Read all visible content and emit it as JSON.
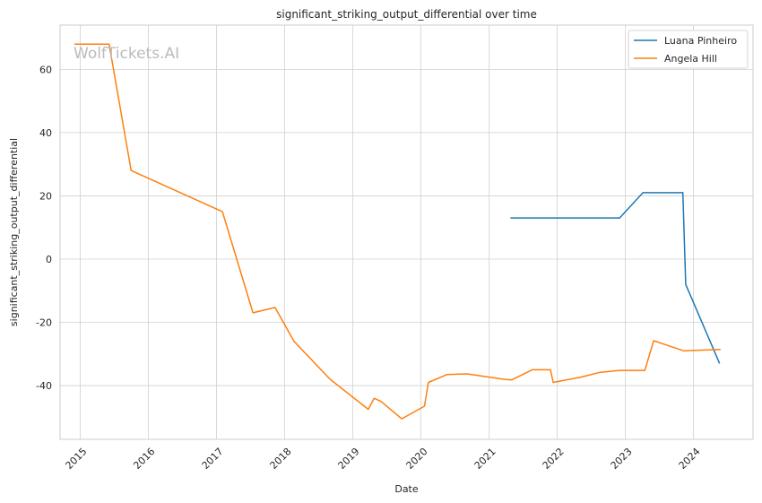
{
  "watermark": "WolfTickets.AI",
  "chart_data": {
    "type": "line",
    "title": "significant_striking_output_differential over time",
    "xlabel": "Date",
    "ylabel": "significant_striking_output_differential",
    "xlim": [
      "2014-09-15",
      "2024-11-15"
    ],
    "ylim": [
      -57,
      74
    ],
    "x_ticks": [
      "2015",
      "2016",
      "2017",
      "2018",
      "2019",
      "2020",
      "2021",
      "2022",
      "2023",
      "2024"
    ],
    "y_ticks": [
      -40,
      -20,
      0,
      20,
      40,
      60
    ],
    "grid": true,
    "legend_position": "top-right",
    "series": [
      {
        "name": "Luana Pinheiro",
        "color": "#1f77b4",
        "points": [
          [
            "2021-04-25",
            13
          ],
          [
            "2022-12-01",
            13
          ],
          [
            "2023-04-05",
            21
          ],
          [
            "2023-11-05",
            21
          ],
          [
            "2023-11-20",
            -8
          ],
          [
            "2024-05-20",
            -33
          ]
        ]
      },
      {
        "name": "Angela Hill",
        "color": "#ff7f0e",
        "points": [
          [
            "2014-12-01",
            68
          ],
          [
            "2015-06-05",
            68
          ],
          [
            "2015-10-01",
            28
          ],
          [
            "2017-02-01",
            15
          ],
          [
            "2017-07-15",
            -17
          ],
          [
            "2017-11-10",
            -15.3
          ],
          [
            "2018-02-20",
            -26
          ],
          [
            "2018-09-01",
            -38
          ],
          [
            "2019-03-25",
            -47.5
          ],
          [
            "2019-04-25",
            -44
          ],
          [
            "2019-06-01",
            -45
          ],
          [
            "2019-09-20",
            -50.5
          ],
          [
            "2020-01-20",
            -46.5
          ],
          [
            "2020-02-10",
            -39
          ],
          [
            "2020-05-20",
            -36.5
          ],
          [
            "2020-09-05",
            -36.3
          ],
          [
            "2021-03-20",
            -38
          ],
          [
            "2021-05-01",
            -38.2
          ],
          [
            "2021-08-20",
            -35
          ],
          [
            "2021-11-25",
            -35
          ],
          [
            "2021-12-10",
            -39
          ],
          [
            "2022-05-10",
            -37.3
          ],
          [
            "2022-08-20",
            -35.8
          ],
          [
            "2022-12-01",
            -35.2
          ],
          [
            "2023-04-15",
            -35.2
          ],
          [
            "2023-06-01",
            -25.8
          ],
          [
            "2023-11-10",
            -29
          ],
          [
            "2024-05-25",
            -28.6
          ]
        ]
      }
    ]
  }
}
